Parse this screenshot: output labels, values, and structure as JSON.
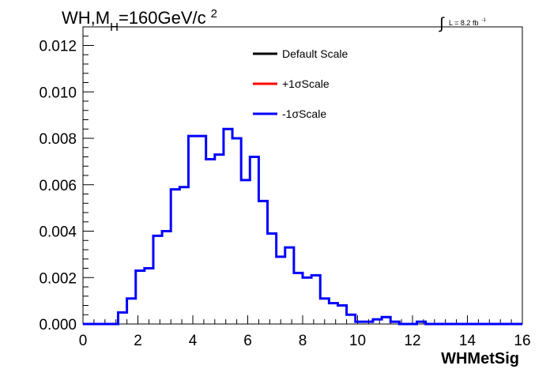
{
  "title": {
    "main": "WH,M",
    "sub": "H",
    "rest": "=160GeV/c",
    "sup": "2"
  },
  "lumi": {
    "integral": "∫",
    "text": "L = 8.2 fb",
    "sup": "-1"
  },
  "legend": [
    {
      "label": "Default Scale",
      "color": "#000000"
    },
    {
      "label": "+1σScale",
      "color": "#ff0000"
    },
    {
      "label": "-1σScale",
      "color": "#0000ff"
    }
  ],
  "chart_data": {
    "type": "histogram",
    "xlabel": "WHMetSig",
    "ylabel": "",
    "xlim": [
      0,
      16
    ],
    "ylim": [
      0,
      0.0128
    ],
    "xticks": [
      "0",
      "2",
      "4",
      "6",
      "8",
      "10",
      "12",
      "14",
      "16"
    ],
    "yticks": [
      "0.000",
      "0.002",
      "0.004",
      "0.006",
      "0.008",
      "0.010",
      "0.012"
    ],
    "bin_width": 0.32,
    "bin_start": 0.0,
    "series": [
      {
        "name": "-1σScale",
        "color": "#0000ff",
        "values": [
          0.0,
          0.0,
          0.0,
          0.0,
          0.0005,
          0.0011,
          0.0023,
          0.0024,
          0.0038,
          0.004,
          0.0058,
          0.0059,
          0.0081,
          0.0081,
          0.0071,
          0.0073,
          0.0084,
          0.008,
          0.0062,
          0.0072,
          0.0053,
          0.0039,
          0.0029,
          0.0033,
          0.0022,
          0.002,
          0.0021,
          0.0011,
          0.0009,
          0.0008,
          0.0004,
          0.0001,
          0.0001,
          0.0002,
          0.0003,
          0.0001,
          0.0,
          0.0,
          0.0001,
          0.0,
          0.0,
          0.0,
          0.0,
          0.0,
          0.0,
          0.0,
          0.0,
          0.0,
          0.0,
          0.0
        ]
      }
    ]
  }
}
